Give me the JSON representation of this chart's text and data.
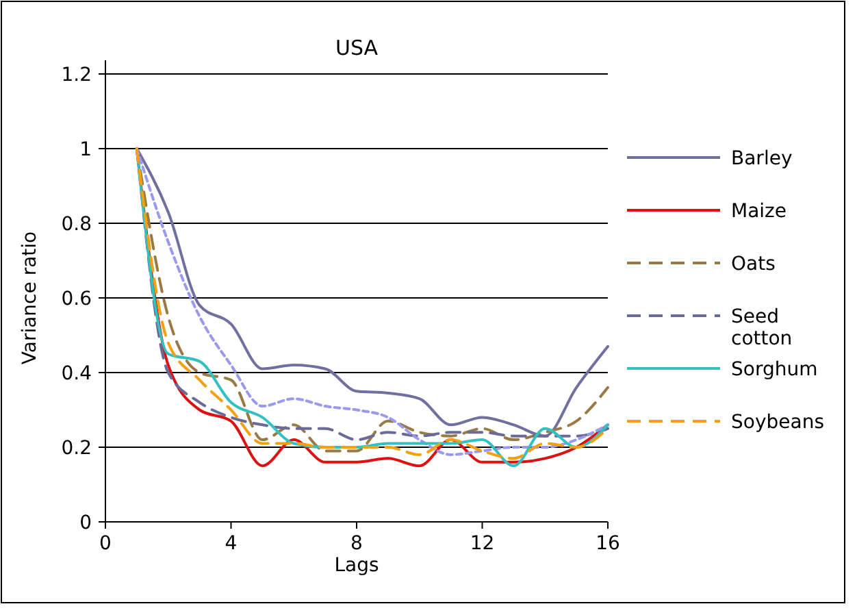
{
  "chart_data": {
    "type": "line",
    "title": "USA",
    "xlabel": "Lags",
    "ylabel": "Variance ratio",
    "x": [
      1,
      2,
      3,
      4,
      5,
      6,
      7,
      8,
      9,
      10,
      11,
      12,
      13,
      14,
      15,
      16
    ],
    "xlim": [
      0,
      16
    ],
    "xticks": [
      0,
      4,
      8,
      12,
      16
    ],
    "ylim": [
      0,
      1.2
    ],
    "yticks": [
      0,
      0.2,
      0.4,
      0.6,
      0.8,
      1,
      1.2
    ],
    "grid": "y",
    "legend": "right",
    "series": [
      {
        "name": "Barley",
        "color": "#7070a0",
        "line_style": "solid",
        "values": [
          1,
          0.83,
          0.58,
          0.53,
          0.41,
          0.42,
          0.41,
          0.35,
          0.345,
          0.33,
          0.26,
          0.28,
          0.26,
          0.23,
          0.36,
          0.47
        ]
      },
      {
        "name": "Maize",
        "color": "#dd1111",
        "line_style": "solid",
        "values": [
          1,
          0.42,
          0.3,
          0.27,
          0.15,
          0.22,
          0.16,
          0.16,
          0.17,
          0.15,
          0.22,
          0.16,
          0.16,
          0.17,
          0.2,
          0.26
        ]
      },
      {
        "name": "Oats",
        "color": "#9a7a44",
        "line_style": "dashed",
        "values": [
          1,
          0.55,
          0.4,
          0.38,
          0.22,
          0.26,
          0.19,
          0.19,
          0.27,
          0.24,
          0.23,
          0.25,
          0.22,
          0.24,
          0.27,
          0.36
        ]
      },
      {
        "name": "Seed cotton",
        "color": "#6a6a99",
        "line_style": "dashed",
        "values": [
          1,
          0.4,
          0.32,
          0.28,
          0.26,
          0.25,
          0.25,
          0.22,
          0.24,
          0.23,
          0.24,
          0.24,
          0.23,
          0.23,
          0.23,
          0.25
        ]
      },
      {
        "color": "#9999ee",
        "line_style": "dotted",
        "values": [
          1,
          0.75,
          0.55,
          0.42,
          0.31,
          0.33,
          0.31,
          0.3,
          0.28,
          0.22,
          0.18,
          0.19,
          0.2,
          0.2,
          0.22,
          0.26
        ]
      },
      {
        "name": "Sorghum",
        "color": "#33c0c0",
        "line_style": "solid",
        "values": [
          1,
          0.45,
          0.43,
          0.32,
          0.28,
          0.21,
          0.2,
          0.2,
          0.21,
          0.21,
          0.21,
          0.22,
          0.15,
          0.25,
          0.2,
          0.26
        ]
      },
      {
        "name": "Soybeans",
        "color": "#f5a010",
        "line_style": "dashed",
        "values": [
          1,
          0.48,
          0.38,
          0.3,
          0.21,
          0.21,
          0.2,
          0.2,
          0.2,
          0.18,
          0.22,
          0.19,
          0.17,
          0.21,
          0.2,
          0.25
        ]
      }
    ]
  }
}
